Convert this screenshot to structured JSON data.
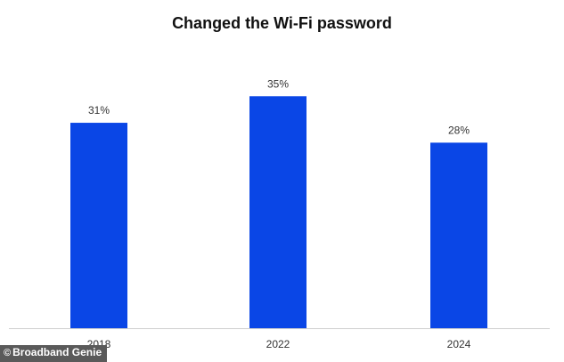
{
  "colors": {
    "bar": "#0a46e6",
    "axis": "#cfcfcf",
    "text": "#333333",
    "title": "#111111",
    "badge_bg": "#5a5a5a"
  },
  "source": {
    "symbol": "©",
    "text": "Broadband Genie"
  },
  "chart_data": {
    "type": "bar",
    "title": "Changed the Wi-Fi password",
    "categories": [
      "2018",
      "2022",
      "2024"
    ],
    "values": [
      31,
      35,
      28
    ],
    "value_labels": [
      "31%",
      "35%",
      "28%"
    ],
    "xlabel": "",
    "ylabel": "",
    "ylim": [
      0,
      40
    ],
    "grid": false,
    "legend": "none"
  }
}
